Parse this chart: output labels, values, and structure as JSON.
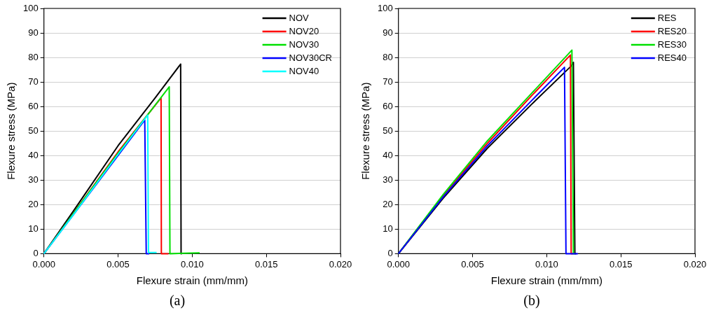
{
  "chart_data": [
    {
      "type": "line",
      "xlabel": "Flexure strain (mm/mm)",
      "ylabel": "Flexure stress (MPa)",
      "annotations": [
        "(a)"
      ],
      "xlim": [
        0,
        0.02
      ],
      "ylim": [
        0,
        100
      ],
      "xticks": [
        {
          "value": 0,
          "label": "0.000"
        },
        {
          "value": 0.005,
          "label": "0.005"
        },
        {
          "value": 0.01,
          "label": "0.010"
        },
        {
          "value": 0.015,
          "label": "0.015"
        },
        {
          "value": 0.02,
          "label": "0.020"
        }
      ],
      "yticks": [
        0,
        10,
        20,
        30,
        40,
        50,
        60,
        70,
        80,
        90,
        100
      ],
      "grid": "y",
      "legend": "top right",
      "marker": "none",
      "line_style": "solid",
      "series": [
        {
          "name": "NOV",
          "color": "#000000",
          "x": [
            0,
            0.002,
            0.005,
            0.0075,
            0.00922,
            0.00925,
            0.0093
          ],
          "values": [
            0,
            17.5,
            44,
            63.5,
            77.3,
            0,
            0
          ]
        },
        {
          "name": "NOV20",
          "color": "#ff0000",
          "x": [
            0,
            0.002,
            0.005,
            0.0079,
            0.00792,
            0.0084
          ],
          "values": [
            0,
            16.5,
            41.5,
            63.5,
            0,
            0
          ]
        },
        {
          "name": "NOV30",
          "color": "#00e000",
          "x": [
            0,
            0.002,
            0.005,
            0.00845,
            0.0085,
            0.0105
          ],
          "values": [
            0,
            16.5,
            41,
            68,
            0,
            0.3
          ]
        },
        {
          "name": "NOV30CR",
          "color": "#0000ff",
          "x": [
            0,
            0.002,
            0.005,
            0.0068,
            0.0069,
            0.0071
          ],
          "values": [
            0,
            16,
            40,
            54.5,
            0,
            0
          ]
        },
        {
          "name": "NOV40",
          "color": "#00ffff",
          "x": [
            0,
            0.002,
            0.005,
            0.007,
            0.00705,
            0.0076
          ],
          "values": [
            0,
            16,
            40.5,
            56.5,
            0.5,
            0.5
          ]
        }
      ]
    },
    {
      "type": "line",
      "xlabel": "Flexure strain (mm/mm)",
      "ylabel": "Flexure stress (MPa)",
      "annotations": [
        "(b)"
      ],
      "xlim": [
        0,
        0.02
      ],
      "ylim": [
        0,
        100
      ],
      "xticks": [
        {
          "value": 0,
          "label": "0.000"
        },
        {
          "value": 0.005,
          "label": "0.005"
        },
        {
          "value": 0.01,
          "label": "0.010"
        },
        {
          "value": 0.015,
          "label": "0.015"
        },
        {
          "value": 0.02,
          "label": "0.020"
        }
      ],
      "yticks": [
        0,
        10,
        20,
        30,
        40,
        50,
        60,
        70,
        80,
        90,
        100
      ],
      "grid": "y",
      "legend": "top right",
      "marker": "none",
      "line_style": "solid",
      "series": [
        {
          "name": "RES",
          "color": "#000000",
          "x": [
            0,
            0.003,
            0.006,
            0.009,
            0.01165,
            0.0118,
            0.0119,
            0.012
          ],
          "values": [
            0,
            22.5,
            43,
            61,
            76.5,
            78,
            0,
            0
          ]
        },
        {
          "name": "RES20",
          "color": "#ff0000",
          "x": [
            0,
            0.003,
            0.006,
            0.009,
            0.0116,
            0.01165,
            0.0118
          ],
          "values": [
            0,
            23.5,
            45,
            64.5,
            81,
            0,
            0
          ]
        },
        {
          "name": "RES30",
          "color": "#00e000",
          "x": [
            0,
            0.003,
            0.006,
            0.009,
            0.0117,
            0.0118,
            0.0119
          ],
          "values": [
            0,
            24,
            46,
            65.5,
            83,
            0,
            0
          ]
        },
        {
          "name": "RES40",
          "color": "#0000ff",
          "x": [
            0,
            0.003,
            0.006,
            0.009,
            0.0112,
            0.0113,
            0.0121
          ],
          "values": [
            0,
            23,
            44,
            62.5,
            76,
            0,
            0
          ]
        }
      ]
    }
  ]
}
